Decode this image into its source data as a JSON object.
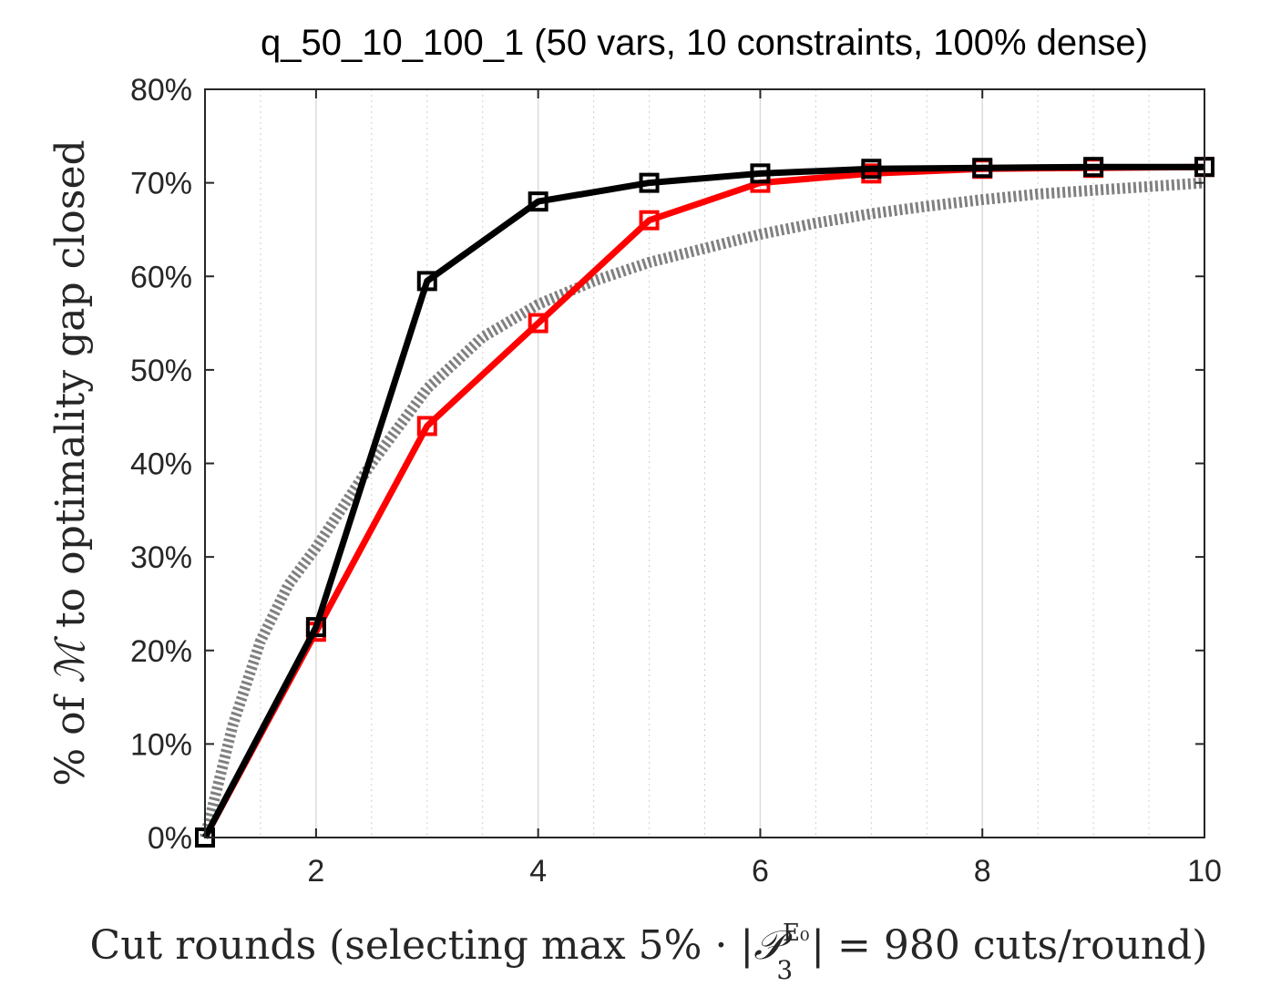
{
  "chart_data": {
    "type": "line",
    "title": "q_50_10_100_1 (50 vars, 10 constraints, 100% dense)",
    "xlabel": {
      "prefix": "Cut rounds (selecting max 5% · |",
      "symbol": "𝒫",
      "subscript": "3",
      "superscript": "E₀",
      "suffix": "| = 980 cuts/round)"
    },
    "ylabel": {
      "prefix": "% of ",
      "symbol": "ℳ",
      "suffix": " to optimality gap closed"
    },
    "xlim": [
      1,
      10
    ],
    "ylim": [
      0,
      80
    ],
    "xticks": [
      2,
      4,
      6,
      8,
      10
    ],
    "yticks": [
      0,
      10,
      20,
      30,
      40,
      50,
      60,
      70,
      80
    ],
    "ytick_format": "percent",
    "grid": "vertical major solid, minor dotted",
    "series": [
      {
        "color": "#808080",
        "style": "dotted-thick",
        "marker": "none",
        "x": [
          1,
          1.25,
          1.5,
          1.75,
          2,
          2.5,
          3,
          3.5,
          4,
          4.5,
          5,
          5.5,
          6,
          6.5,
          7,
          7.5,
          8,
          8.5,
          9,
          9.5,
          10
        ],
        "y": [
          0,
          12,
          21,
          27,
          31,
          40,
          48,
          53.5,
          57,
          59.5,
          61.5,
          63,
          64.5,
          65.7,
          66.7,
          67.5,
          68.2,
          68.8,
          69.2,
          69.6,
          70
        ]
      },
      {
        "color": "#ff0000",
        "style": "solid",
        "marker": "square",
        "x": [
          1,
          2,
          3,
          4,
          5,
          6,
          7,
          8,
          9,
          10
        ],
        "y": [
          0,
          22,
          44,
          55,
          66,
          70,
          71,
          71.5,
          71.6,
          71.7
        ]
      },
      {
        "color": "#000000",
        "style": "solid",
        "marker": "square",
        "x": [
          1,
          2,
          3,
          4,
          5,
          6,
          7,
          8,
          9,
          10
        ],
        "y": [
          0,
          22.5,
          59.5,
          68,
          70,
          71,
          71.5,
          71.6,
          71.7,
          71.7
        ]
      }
    ]
  }
}
